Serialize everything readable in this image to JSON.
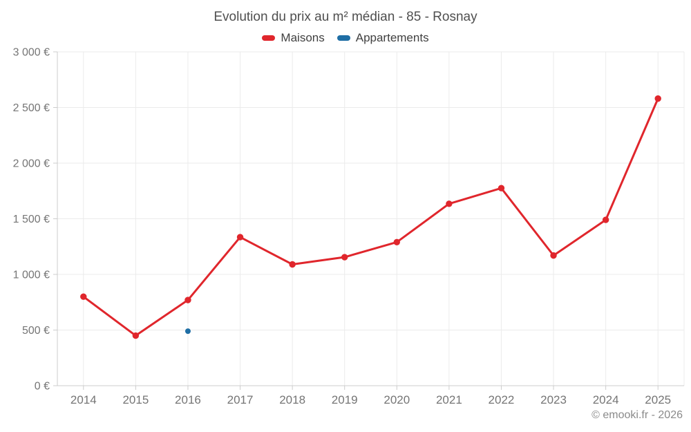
{
  "page": {
    "title": "Evolution du prix au m² médian - 85 - Rosnay",
    "copyright": "© emooki.fr - 2026"
  },
  "chart_data": {
    "type": "line",
    "title": "Evolution du prix au m² médian - 85 - Rosnay",
    "categories": [
      "2014",
      "2015",
      "2016",
      "2017",
      "2018",
      "2019",
      "2020",
      "2021",
      "2022",
      "2023",
      "2024",
      "2025"
    ],
    "series": [
      {
        "name": "Maisons",
        "color": "#e0262c",
        "marker_radius": 4.7,
        "line_width": 3,
        "values": [
          800,
          450,
          770,
          1335,
          1090,
          1155,
          1290,
          1635,
          1775,
          1170,
          1490,
          2580
        ]
      },
      {
        "name": "Appartements",
        "color": "#1f6ea5",
        "marker_radius": 4,
        "line_width": 3,
        "values": [
          null,
          null,
          490,
          null,
          null,
          null,
          null,
          null,
          null,
          null,
          null,
          null
        ]
      }
    ],
    "ylim": [
      0,
      3000
    ],
    "y_ticks": [
      0,
      500,
      1000,
      1500,
      2000,
      2500,
      3000
    ],
    "y_tick_labels": [
      "0 €",
      "500 €",
      "1 000 €",
      "1 500 €",
      "2 000 €",
      "2 500 €",
      "3 000 €"
    ],
    "xlabel": "",
    "ylabel": "",
    "unit": "€",
    "grid": true,
    "legend_position": "top"
  },
  "colors": {
    "maisons": "#e0262c",
    "appartements": "#1f6ea5",
    "grid_line": "#ebebeb",
    "axis_line": "#cccccc",
    "axis_label": "#757575",
    "title_text": "#4f4f4f",
    "legend_text": "#404040",
    "footer_text": "#8a8a8a"
  }
}
